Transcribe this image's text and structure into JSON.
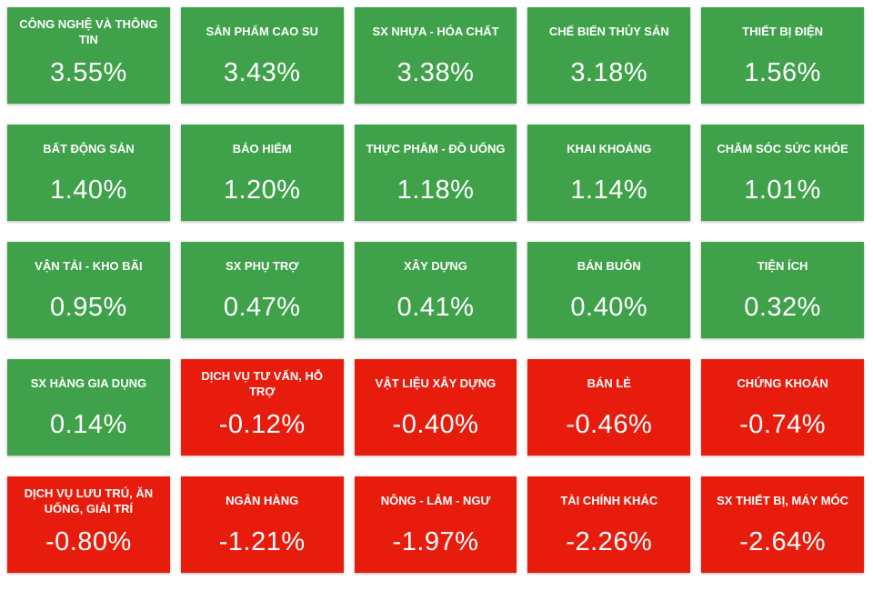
{
  "chart_data": {
    "type": "heatmap",
    "title": "",
    "unit": "%",
    "layout": {
      "columns": 5,
      "rows": 5,
      "order": "row-major, sorted descending by change",
      "legend": "off",
      "grid": "tile-grid"
    },
    "colors": {
      "positive": "#3fa14a",
      "negative": "#e81c0d",
      "tile_text": "#ffffff",
      "background": "#ffffff"
    },
    "sectors": [
      {
        "name": "CÔNG NGHỆ VÀ THÔNG TIN",
        "value": 3.55,
        "display": "3.55%"
      },
      {
        "name": "SẢN PHẨM CAO SU",
        "value": 3.43,
        "display": "3.43%"
      },
      {
        "name": "SX NHỰA - HÓA CHẤT",
        "value": 3.38,
        "display": "3.38%"
      },
      {
        "name": "CHẾ BIẾN THỦY SẢN",
        "value": 3.18,
        "display": "3.18%"
      },
      {
        "name": "THIẾT BỊ ĐIỆN",
        "value": 1.56,
        "display": "1.56%"
      },
      {
        "name": "BẤT ĐỘNG SẢN",
        "value": 1.4,
        "display": "1.40%"
      },
      {
        "name": "BẢO HIỂM",
        "value": 1.2,
        "display": "1.20%"
      },
      {
        "name": "THỰC PHẨM - ĐỒ UỐNG",
        "value": 1.18,
        "display": "1.18%"
      },
      {
        "name": "KHAI KHOÁNG",
        "value": 1.14,
        "display": "1.14%"
      },
      {
        "name": "CHĂM SÓC SỨC KHỎE",
        "value": 1.01,
        "display": "1.01%"
      },
      {
        "name": "VẬN TẢI - KHO BÃI",
        "value": 0.95,
        "display": "0.95%"
      },
      {
        "name": "SX PHỤ TRỢ",
        "value": 0.47,
        "display": "0.47%"
      },
      {
        "name": "XÂY DỰNG",
        "value": 0.41,
        "display": "0.41%"
      },
      {
        "name": "BÁN BUÔN",
        "value": 0.4,
        "display": "0.40%"
      },
      {
        "name": "TIỆN ÍCH",
        "value": 0.32,
        "display": "0.32%"
      },
      {
        "name": "SX HÀNG GIA DỤNG",
        "value": 0.14,
        "display": "0.14%"
      },
      {
        "name": "DỊCH VỤ TƯ VẤN, HỖ TRỢ",
        "value": -0.12,
        "display": "-0.12%"
      },
      {
        "name": "VẬT LIỆU XÂY DỰNG",
        "value": -0.4,
        "display": "-0.40%"
      },
      {
        "name": "BÁN LẺ",
        "value": -0.46,
        "display": "-0.46%"
      },
      {
        "name": "CHỨNG KHOÁN",
        "value": -0.74,
        "display": "-0.74%"
      },
      {
        "name": "DỊCH VỤ LƯU TRÚ, ĂN UỐNG, GIẢI TRÍ",
        "value": -0.8,
        "display": "-0.80%"
      },
      {
        "name": "NGÂN HÀNG",
        "value": -1.21,
        "display": "-1.21%"
      },
      {
        "name": "NÔNG - LÂM - NGƯ",
        "value": -1.97,
        "display": "-1.97%"
      },
      {
        "name": "TÀI CHÍNH KHÁC",
        "value": -2.26,
        "display": "-2.26%"
      },
      {
        "name": "SX THIẾT BỊ, MÁY MÓC",
        "value": -2.64,
        "display": "-2.64%"
      }
    ]
  }
}
